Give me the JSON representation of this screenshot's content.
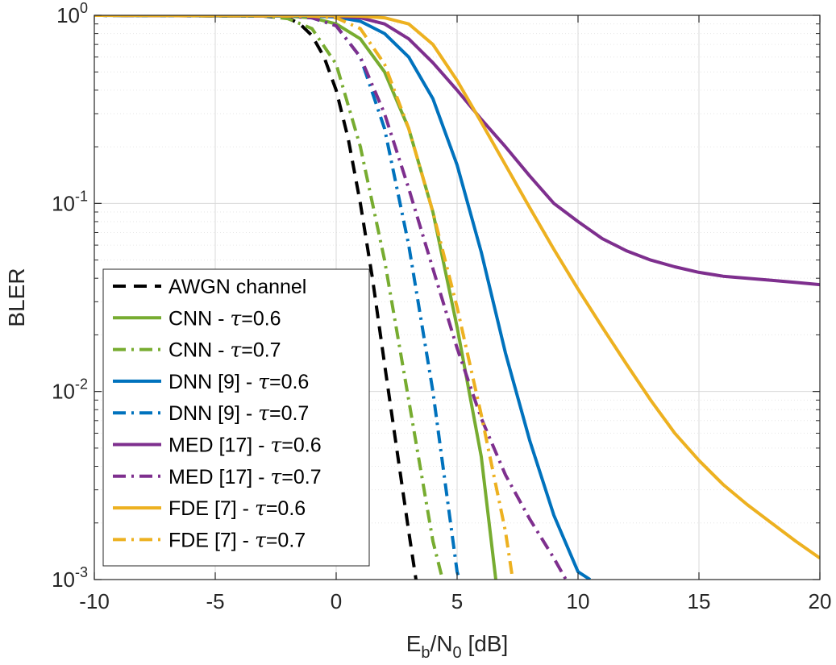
{
  "chart_data": {
    "type": "line",
    "title": "",
    "xlabel": "E_b/N_0 [dB]",
    "xlabel_parts": {
      "main": "E",
      "sub1": "b",
      "slash": "/N",
      "sub2": "0",
      "unit": " [dB]"
    },
    "ylabel": "BLER",
    "xlim": [
      -10,
      20
    ],
    "ylim": [
      0.001,
      1
    ],
    "yscale": "log",
    "grid": true,
    "legend_position": "bottom-left",
    "x_ticks": [
      {
        "value": -10,
        "label": "-10"
      },
      {
        "value": -5,
        "label": "-5"
      },
      {
        "value": 0,
        "label": "0"
      },
      {
        "value": 5,
        "label": "5"
      },
      {
        "value": 10,
        "label": "10"
      },
      {
        "value": 15,
        "label": "15"
      },
      {
        "value": 20,
        "label": "20"
      }
    ],
    "y_ticks": [
      {
        "value": 1,
        "base": "10",
        "exp": "0"
      },
      {
        "value": 0.1,
        "base": "10",
        "exp": "-1"
      },
      {
        "value": 0.01,
        "base": "10",
        "exp": "-2"
      },
      {
        "value": 0.001,
        "base": "10",
        "exp": "-3"
      }
    ],
    "series": [
      {
        "name": "AWGN channel",
        "label_main": "AWGN channel",
        "label_tau": "",
        "color": "#000000",
        "style": "dashed",
        "x": [
          -10,
          -3,
          -2,
          -1.5,
          -1,
          -0.5,
          0,
          0.5,
          1,
          1.5,
          2,
          2.5,
          3,
          3.3
        ],
        "y": [
          1,
          0.99,
          0.97,
          0.9,
          0.78,
          0.6,
          0.4,
          0.22,
          0.1,
          0.04,
          0.014,
          0.005,
          0.0018,
          0.001
        ]
      },
      {
        "name": "CNN - τ=0.6",
        "label_main": "CNN - ",
        "label_tau": "=0.6",
        "color": "#77ac30",
        "style": "solid",
        "x": [
          -10,
          -2,
          -1,
          0,
          1,
          2,
          3,
          4,
          5,
          6,
          6.6
        ],
        "y": [
          1,
          0.99,
          0.97,
          0.9,
          0.75,
          0.5,
          0.25,
          0.09,
          0.022,
          0.0045,
          0.001
        ]
      },
      {
        "name": "CNN - τ=0.7",
        "label_main": "CNN - ",
        "label_tau": "=0.7",
        "color": "#77ac30",
        "style": "dashdot",
        "x": [
          -10,
          -3,
          -2,
          -1,
          0,
          1,
          2,
          3,
          4,
          4.4
        ],
        "y": [
          1,
          0.99,
          0.96,
          0.85,
          0.55,
          0.2,
          0.05,
          0.009,
          0.0016,
          0.001
        ]
      },
      {
        "name": "DNN [9] - τ=0.6",
        "label_main": "DNN [9] - ",
        "label_tau": "=0.6",
        "color": "#0072bd",
        "style": "solid",
        "x": [
          -10,
          -1,
          0,
          1,
          2,
          3,
          4,
          5,
          6,
          7,
          8,
          9,
          10,
          10.5
        ],
        "y": [
          1,
          0.99,
          0.98,
          0.93,
          0.8,
          0.6,
          0.36,
          0.16,
          0.055,
          0.016,
          0.0055,
          0.0022,
          0.0011,
          0.001
        ]
      },
      {
        "name": "DNN [9] - τ=0.7",
        "label_main": "DNN [9] - ",
        "label_tau": "=0.7",
        "color": "#0072bd",
        "style": "dashdot",
        "x": [
          -10,
          -2,
          -1,
          0,
          1,
          2,
          3,
          4,
          5,
          5.1
        ],
        "y": [
          1,
          0.99,
          0.97,
          0.88,
          0.6,
          0.25,
          0.06,
          0.01,
          0.0011,
          0.001
        ]
      },
      {
        "name": "MED [17] - τ=0.6",
        "label_main": "MED [17] - ",
        "label_tau": "=0.6",
        "color": "#7e2f8e",
        "style": "solid",
        "x": [
          -10,
          -1,
          0,
          1,
          2,
          3,
          4,
          5,
          6,
          7,
          8,
          9,
          10,
          11,
          12,
          13,
          14,
          15,
          16,
          17,
          18,
          19,
          20
        ],
        "y": [
          1,
          0.995,
          0.99,
          0.97,
          0.9,
          0.75,
          0.56,
          0.4,
          0.28,
          0.2,
          0.14,
          0.1,
          0.08,
          0.065,
          0.056,
          0.05,
          0.046,
          0.043,
          0.041,
          0.04,
          0.039,
          0.038,
          0.037
        ]
      },
      {
        "name": "MED [17] - τ=0.7",
        "label_main": "MED [17] - ",
        "label_tau": "=0.7",
        "color": "#7e2f8e",
        "style": "dashdot",
        "x": [
          -10,
          -2,
          -1,
          0,
          1,
          2,
          3,
          4,
          5,
          6,
          7,
          8,
          9,
          9.5
        ],
        "y": [
          1,
          0.99,
          0.97,
          0.88,
          0.6,
          0.3,
          0.12,
          0.045,
          0.017,
          0.0072,
          0.0036,
          0.0021,
          0.0013,
          0.001
        ]
      },
      {
        "name": "FDE [7] - τ=0.6",
        "label_main": "FDE [7] - ",
        "label_tau": "=0.6",
        "color": "#edb120",
        "style": "solid",
        "x": [
          -10,
          0,
          1,
          2,
          3,
          4,
          5,
          6,
          7,
          8,
          9,
          10,
          11,
          12,
          13,
          14,
          15,
          16,
          17,
          18,
          19,
          20
        ],
        "y": [
          1,
          0.995,
          0.99,
          0.97,
          0.9,
          0.7,
          0.45,
          0.27,
          0.16,
          0.095,
          0.057,
          0.035,
          0.022,
          0.014,
          0.009,
          0.006,
          0.0043,
          0.0032,
          0.0025,
          0.002,
          0.0016,
          0.0013
        ]
      },
      {
        "name": "FDE [7] - τ=0.7",
        "label_main": "FDE [7] - ",
        "label_tau": "=0.7",
        "color": "#edb120",
        "style": "dashdot",
        "x": [
          -10,
          -1,
          0,
          1,
          2,
          3,
          4,
          5,
          6,
          7,
          7.3
        ],
        "y": [
          1,
          0.99,
          0.97,
          0.85,
          0.55,
          0.25,
          0.09,
          0.028,
          0.0075,
          0.0018,
          0.001
        ]
      }
    ]
  }
}
